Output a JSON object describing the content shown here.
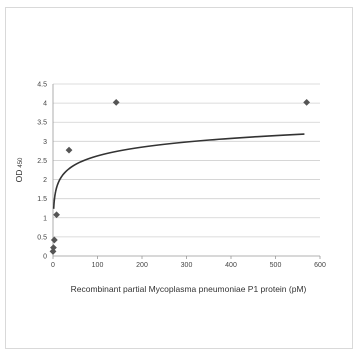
{
  "chart_data": {
    "type": "scatter",
    "title": "",
    "xlabel": "Recombinant partial Mycoplasma pneumoniae  P1 protein (pM)",
    "ylabel_main": "OD",
    "ylabel_sub": "450",
    "xlim": [
      0,
      600
    ],
    "ylim": [
      0,
      4.5
    ],
    "x_ticks": [
      0,
      100,
      200,
      300,
      400,
      500,
      600
    ],
    "y_ticks": [
      0,
      0.5,
      1,
      1.5,
      2,
      2.5,
      3,
      3.5,
      4,
      4.5
    ],
    "y_tick_labels": [
      "0",
      "0.5",
      "1",
      "1.5",
      "2",
      "2.5",
      "3",
      "3.5",
      "4",
      "4.5"
    ],
    "grid": "horizontal",
    "legend": "none",
    "points": [
      {
        "x": 0,
        "y": 0.12
      },
      {
        "x": 1,
        "y": 0.22
      },
      {
        "x": 3,
        "y": 0.42
      },
      {
        "x": 8,
        "y": 1.08
      },
      {
        "x": 36,
        "y": 2.77
      },
      {
        "x": 142,
        "y": 4.02
      },
      {
        "x": 570,
        "y": 4.02
      }
    ],
    "fit_curve": {
      "type": "logarithmic",
      "a": 0.33,
      "b": 1.1,
      "x_start": 1.5,
      "x_end": 565
    },
    "colors": {
      "marker": "#555555",
      "curve": "#333333",
      "grid": "#d0d0d0",
      "axis": "#999999"
    }
  }
}
